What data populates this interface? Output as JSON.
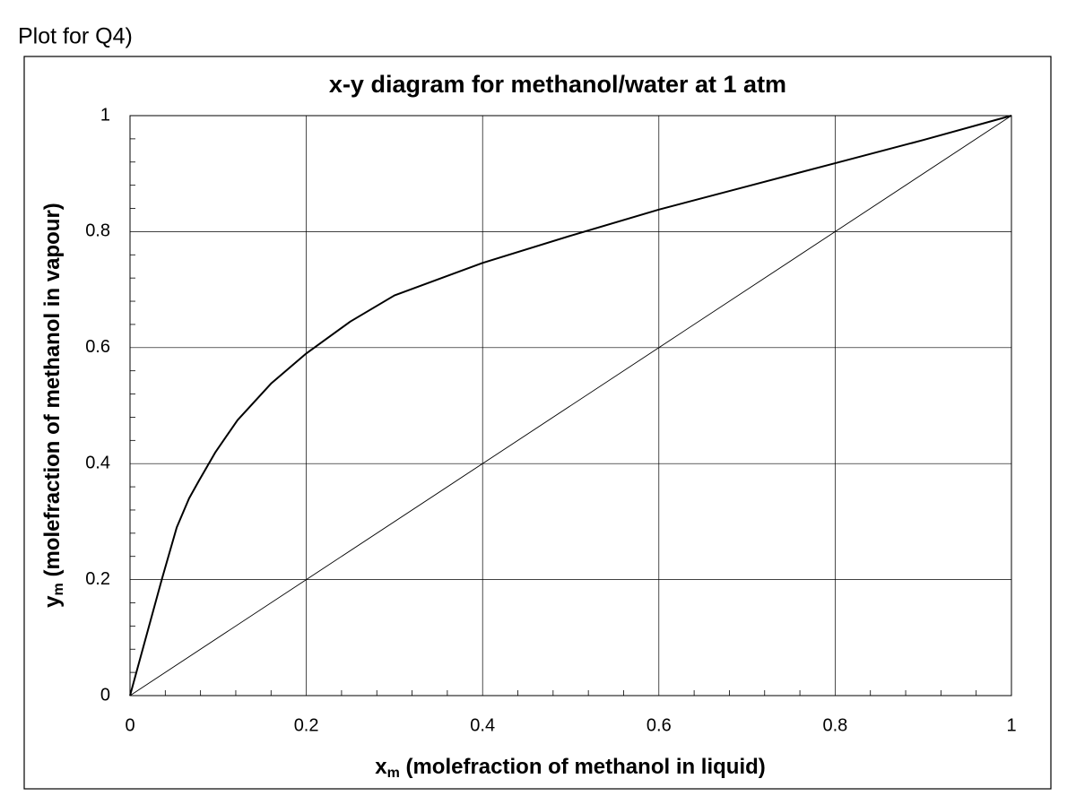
{
  "page_heading": "Plot for Q4)",
  "chart_data": {
    "type": "line",
    "title": "x-y diagram for methanol/water at 1 atm",
    "xlabel": {
      "symbol": "x",
      "subscript": "m",
      "text": " (molefraction of methanol in liquid)"
    },
    "ylabel": {
      "symbol": "y",
      "subscript": "m",
      "text": " (molefraction of methanol in vapour)"
    },
    "xlim": [
      0,
      1
    ],
    "ylim": [
      0,
      1
    ],
    "xticks": [
      0,
      0.2,
      0.4,
      0.6,
      0.8,
      1
    ],
    "yticks": [
      0,
      0.2,
      0.4,
      0.6,
      0.8,
      1
    ],
    "minor_ticks_per_major": 5,
    "grid": true,
    "series": [
      {
        "color": "#000000",
        "line_width": 2,
        "x": [
          0,
          0.036,
          0.053,
          0.067,
          0.078,
          0.097,
          0.122,
          0.16,
          0.2,
          0.25,
          0.3,
          0.4,
          0.5,
          0.6,
          0.7,
          0.8,
          0.9,
          1
        ],
        "values": [
          0,
          0.2,
          0.29,
          0.34,
          0.37,
          0.42,
          0.475,
          0.538,
          0.59,
          0.645,
          0.69,
          0.746,
          0.793,
          0.838,
          0.878,
          0.918,
          0.958,
          1
        ]
      },
      {
        "color": "#000000",
        "line_width": 0.9,
        "x": [
          0,
          1
        ],
        "values": [
          0,
          1
        ]
      }
    ]
  }
}
